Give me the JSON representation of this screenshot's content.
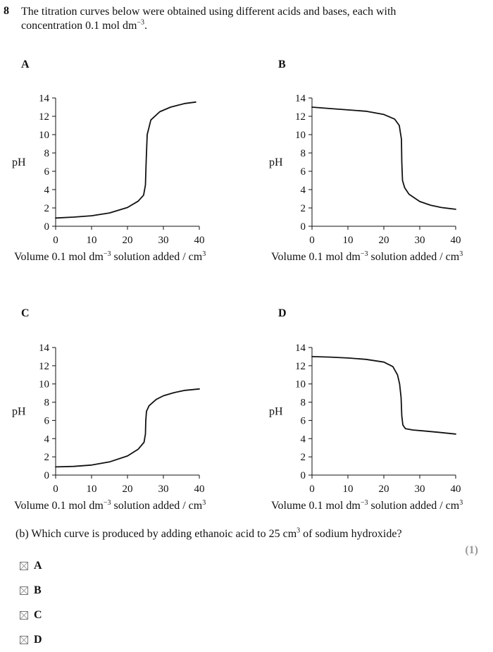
{
  "question": {
    "number": "8",
    "intro_line1": "The titration curves below were obtained using different acids and bases, each with",
    "intro_line2_pre": "concentration 0.1 mol dm",
    "intro_line2_sup": "−3",
    "intro_line2_post": ".",
    "part_pre": "(b) Which curve is produced by adding ethanoic acid to 25 cm",
    "part_sup": "3",
    "part_post": " of sodium hydroxide?",
    "marks": "(1)"
  },
  "axis_text": {
    "ylabel": "pH",
    "xlabel_pre": "Volume 0.1 mol dm",
    "xlabel_sup": "−3",
    "xlabel_mid": " solution added / cm",
    "xlabel_sup2": "3"
  },
  "options": [
    {
      "label": "A"
    },
    {
      "label": "B"
    },
    {
      "label": "C"
    },
    {
      "label": "D"
    }
  ],
  "chart_data": [
    {
      "type": "line",
      "panel_label": "A",
      "xlim": [
        0,
        40
      ],
      "ylim": [
        0,
        14
      ],
      "xticks": [
        0,
        10,
        20,
        30,
        40
      ],
      "yticks": [
        0,
        2,
        4,
        6,
        8,
        10,
        12,
        14
      ],
      "points": [
        [
          0,
          0.9
        ],
        [
          5,
          1.0
        ],
        [
          10,
          1.15
        ],
        [
          15,
          1.45
        ],
        [
          20,
          2.05
        ],
        [
          23,
          2.75
        ],
        [
          24.5,
          3.4
        ],
        [
          25,
          4.5
        ],
        [
          25.2,
          7
        ],
        [
          25.5,
          10
        ],
        [
          26.5,
          11.6
        ],
        [
          29,
          12.5
        ],
        [
          32,
          13
        ],
        [
          36,
          13.4
        ],
        [
          39,
          13.55
        ]
      ]
    },
    {
      "type": "line",
      "panel_label": "B",
      "xlim": [
        0,
        40
      ],
      "ylim": [
        0,
        14
      ],
      "xticks": [
        0,
        10,
        20,
        30,
        40
      ],
      "yticks": [
        0,
        2,
        4,
        6,
        8,
        10,
        12,
        14
      ],
      "points": [
        [
          0,
          13
        ],
        [
          5,
          12.85
        ],
        [
          10,
          12.7
        ],
        [
          15,
          12.55
        ],
        [
          20,
          12.2
        ],
        [
          23,
          11.7
        ],
        [
          24.3,
          11
        ],
        [
          24.9,
          9.5
        ],
        [
          25,
          7
        ],
        [
          25.2,
          5
        ],
        [
          25.8,
          4.2
        ],
        [
          27,
          3.5
        ],
        [
          30,
          2.7
        ],
        [
          33,
          2.3
        ],
        [
          36,
          2.05
        ],
        [
          40,
          1.85
        ]
      ]
    },
    {
      "type": "line",
      "panel_label": "C",
      "xlim": [
        0,
        40
      ],
      "ylim": [
        0,
        14
      ],
      "xticks": [
        0,
        10,
        20,
        30,
        40
      ],
      "yticks": [
        0,
        2,
        4,
        6,
        8,
        10,
        12,
        14
      ],
      "points": [
        [
          0,
          0.9
        ],
        [
          5,
          0.95
        ],
        [
          10,
          1.1
        ],
        [
          15,
          1.45
        ],
        [
          20,
          2.1
        ],
        [
          23,
          2.85
        ],
        [
          24.6,
          3.6
        ],
        [
          25,
          4.5
        ],
        [
          25.1,
          6
        ],
        [
          25.3,
          7
        ],
        [
          26,
          7.6
        ],
        [
          28,
          8.3
        ],
        [
          30,
          8.7
        ],
        [
          33,
          9.05
        ],
        [
          36,
          9.3
        ],
        [
          40,
          9.45
        ]
      ]
    },
    {
      "type": "line",
      "panel_label": "D",
      "xlim": [
        0,
        40
      ],
      "ylim": [
        0,
        14
      ],
      "xticks": [
        0,
        10,
        20,
        30,
        40
      ],
      "yticks": [
        0,
        2,
        4,
        6,
        8,
        10,
        12,
        14
      ],
      "points": [
        [
          0,
          13
        ],
        [
          5,
          12.95
        ],
        [
          10,
          12.85
        ],
        [
          15,
          12.7
        ],
        [
          20,
          12.4
        ],
        [
          22.5,
          11.9
        ],
        [
          23.8,
          11
        ],
        [
          24.4,
          10
        ],
        [
          24.8,
          8.5
        ],
        [
          25,
          6.5
        ],
        [
          25.3,
          5.5
        ],
        [
          26,
          5.1
        ],
        [
          28,
          4.95
        ],
        [
          31,
          4.85
        ],
        [
          35,
          4.7
        ],
        [
          40,
          4.5
        ]
      ]
    }
  ]
}
